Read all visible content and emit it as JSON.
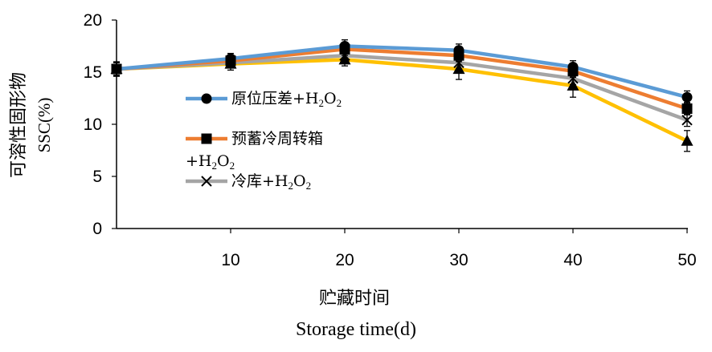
{
  "chart_data": {
    "type": "line",
    "x": [
      0,
      10,
      20,
      30,
      40,
      50
    ],
    "xticks": [
      "10",
      "20",
      "30",
      "40",
      "50"
    ],
    "xtick_values": [
      10,
      20,
      30,
      40,
      50
    ],
    "yticks": [
      "0",
      "5",
      "10",
      "15",
      "20"
    ],
    "ytick_values": [
      0,
      5,
      10,
      15,
      20
    ],
    "xlim": [
      0,
      50
    ],
    "ylim": [
      0,
      20
    ],
    "ylabel_cn": "可溶性固形物",
    "ylabel_en": "SSC(%)",
    "xlabel_cn": "贮藏时间",
    "xlabel_en": "Storage time(d)",
    "grid": false,
    "legend_position": "inside-left",
    "series": [
      {
        "name": "原位压差+H2O2",
        "label": "原位压差+H",
        "sub1": "2",
        "mid": "O",
        "sub2": "2",
        "color": "#5B9BD5",
        "marker": "circle",
        "values": [
          15.3,
          16.3,
          17.5,
          17.1,
          15.5,
          12.6
        ],
        "errors": [
          0.7,
          0.5,
          0.6,
          0.6,
          0.6,
          0.6
        ]
      },
      {
        "name": "预蓄冷周转箱+H2O2",
        "label": "预蓄冷周转箱",
        "label2": "+H",
        "sub1": "2",
        "mid": "O",
        "sub2": "2",
        "color": "#ED7D31",
        "marker": "square",
        "values": [
          15.3,
          16.1,
          17.2,
          16.6,
          15.1,
          11.5
        ],
        "errors": [
          0.6,
          0.5,
          0.6,
          0.6,
          0.6,
          0.6
        ]
      },
      {
        "name": "冷库+H2O2",
        "label": "冷库+H",
        "sub1": "2",
        "mid": "O",
        "sub2": "2",
        "color": "#A5A5A5",
        "marker": "x",
        "values": [
          15.3,
          15.9,
          16.6,
          15.9,
          14.4,
          10.4
        ],
        "errors": [
          0.6,
          0.5,
          0.6,
          0.6,
          0.6,
          0.6
        ]
      },
      {
        "name": "",
        "color": "#FFC000",
        "marker": "triangle",
        "values": [
          15.3,
          15.8,
          16.2,
          15.3,
          13.7,
          8.4
        ],
        "errors": [
          0.6,
          0.6,
          0.6,
          1.0,
          1.1,
          1.0
        ]
      }
    ]
  }
}
